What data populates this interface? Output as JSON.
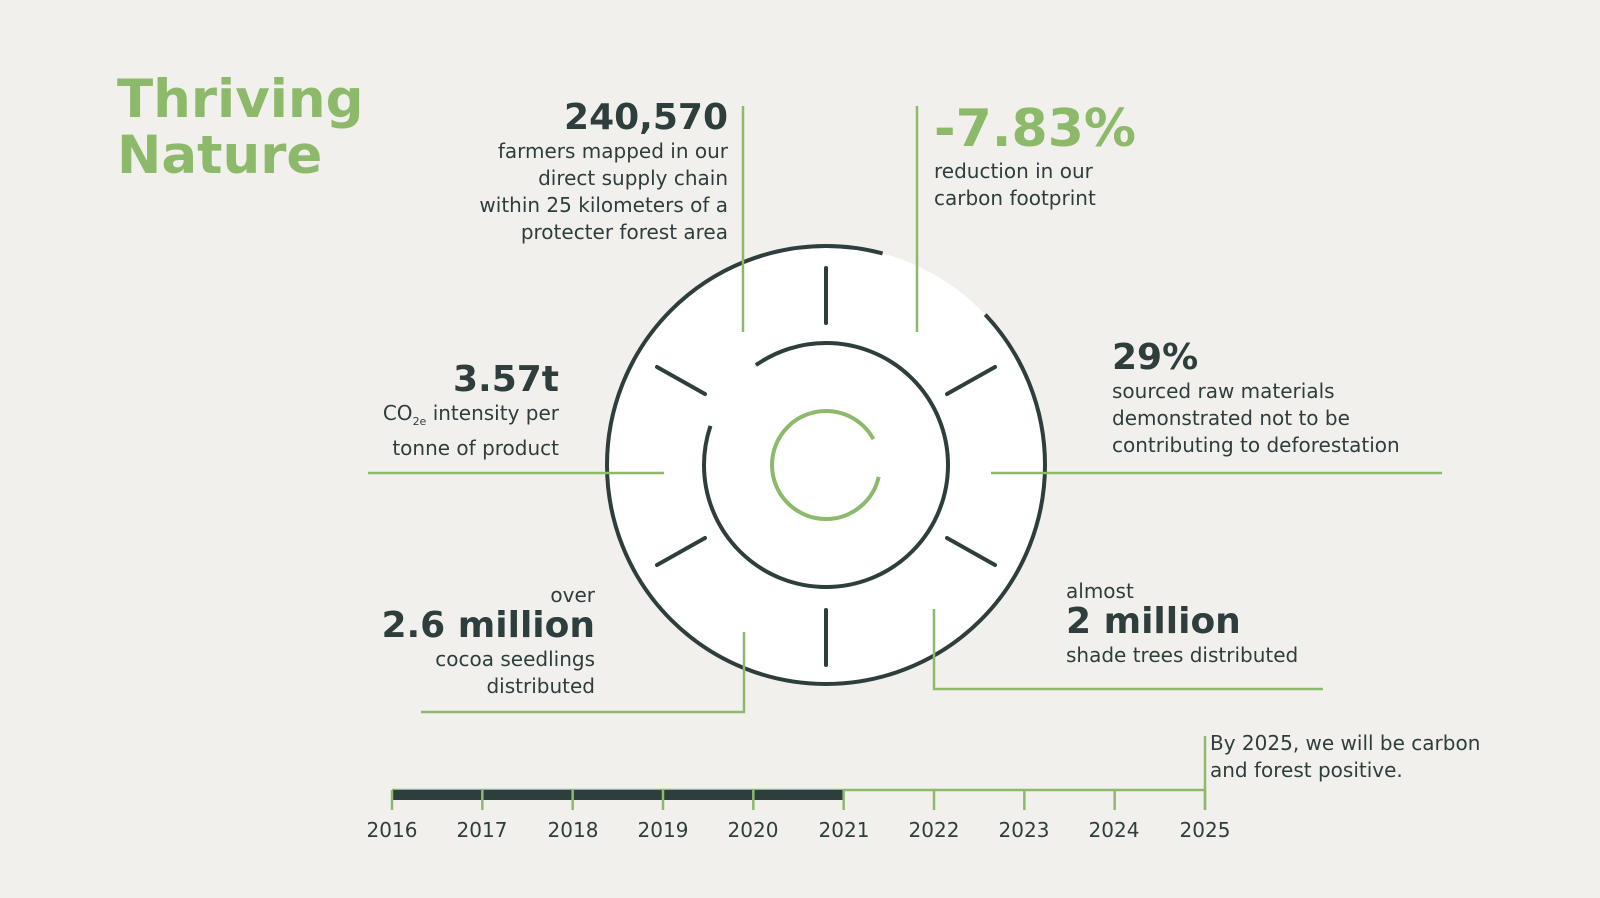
{
  "title": {
    "line1": "Thriving",
    "line2": "Nature"
  },
  "stats": {
    "farmers": {
      "value": "240,570",
      "lines": [
        "farmers mapped in our",
        "direct supply chain",
        "within 25 kilometers of a",
        "protecter forest area"
      ]
    },
    "carbon": {
      "value": "-7.83%",
      "lines": [
        "reduction in our",
        "carbon footprint"
      ]
    },
    "sourced": {
      "value": "29%",
      "lines": [
        "sourced raw materials",
        "demonstrated not to be",
        "contributing to deforestation"
      ]
    },
    "intensity": {
      "value": "3.57t",
      "co": "CO",
      "sub": "2e",
      "rest": " intensity per",
      "line2": "tonne of product"
    },
    "seedlings": {
      "pre": "over",
      "value": "2.6 million",
      "lines": [
        "cocoa seedlings",
        "distributed"
      ]
    },
    "trees": {
      "pre": "almost",
      "value": "2 million",
      "lines": [
        "shade trees distributed"
      ]
    }
  },
  "timeline": {
    "years": [
      "2016",
      "2017",
      "2018",
      "2019",
      "2020",
      "2021",
      "2022",
      "2023",
      "2024",
      "2025"
    ],
    "progress_until": "2021",
    "goal_lines": [
      "By 2025, we will be carbon",
      "and forest positive."
    ]
  },
  "colors": {
    "green": "#8db96a",
    "dark": "#2e3e3d",
    "background": "#f1f0ec",
    "circle": "#ffffff"
  }
}
